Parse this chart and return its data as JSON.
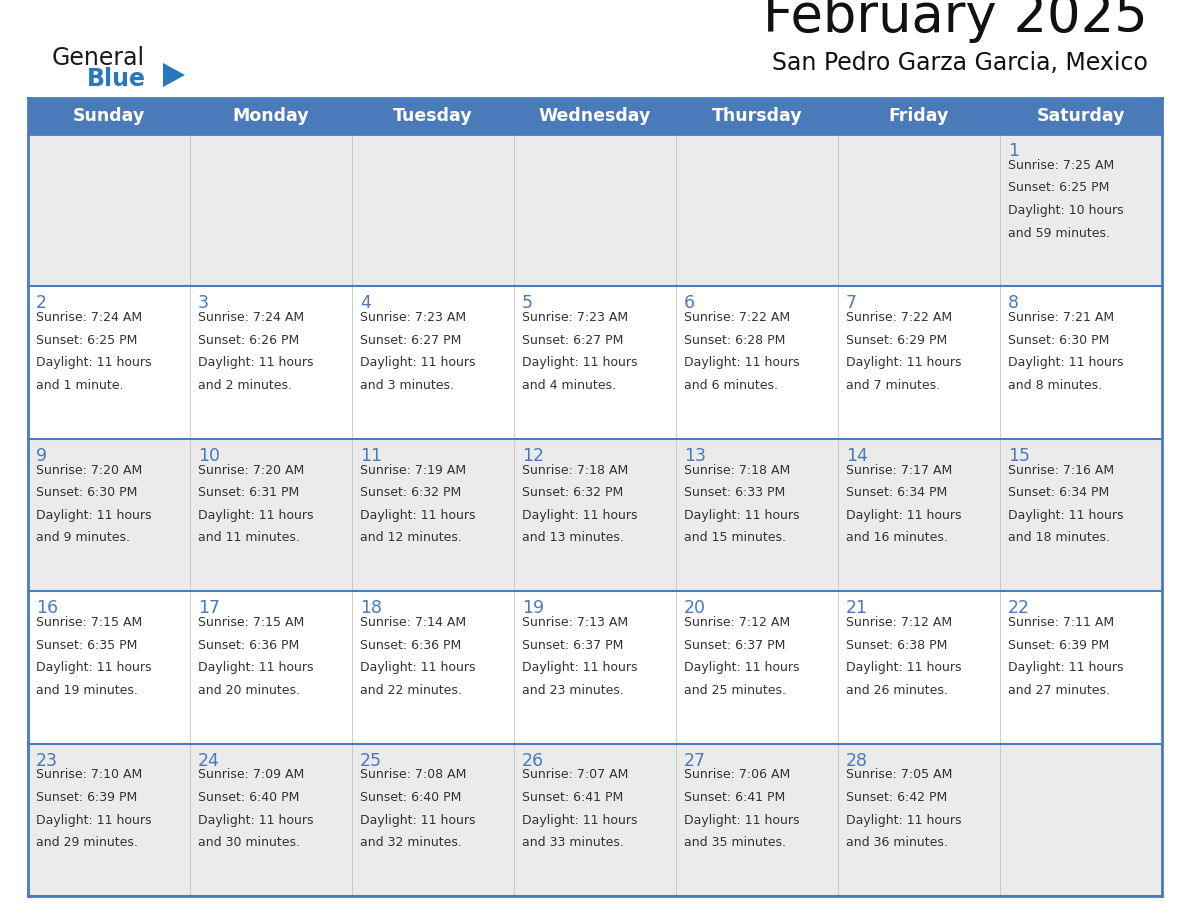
{
  "title": "February 2025",
  "subtitle": "San Pedro Garza Garcia, Mexico",
  "days_of_week": [
    "Sunday",
    "Monday",
    "Tuesday",
    "Wednesday",
    "Thursday",
    "Friday",
    "Saturday"
  ],
  "header_bg": "#4a7aba",
  "header_text": "#ffffff",
  "row_bg_light": "#ebebeb",
  "row_bg_white": "#ffffff",
  "cell_border_color": "#4a7aba",
  "cell_border_thin": "#c0c0c0",
  "day_number_color": "#4a7aba",
  "text_color": "#333333",
  "logo_general_color": "#1a1a1a",
  "logo_blue_color": "#2878be",
  "calendar_data": [
    {
      "day": 1,
      "row": 0,
      "col": 6,
      "sunrise": "7:25 AM",
      "sunset": "6:25 PM",
      "daylight_line1": "Daylight: 10 hours",
      "daylight_line2": "and 59 minutes."
    },
    {
      "day": 2,
      "row": 1,
      "col": 0,
      "sunrise": "7:24 AM",
      "sunset": "6:25 PM",
      "daylight_line1": "Daylight: 11 hours",
      "daylight_line2": "and 1 minute."
    },
    {
      "day": 3,
      "row": 1,
      "col": 1,
      "sunrise": "7:24 AM",
      "sunset": "6:26 PM",
      "daylight_line1": "Daylight: 11 hours",
      "daylight_line2": "and 2 minutes."
    },
    {
      "day": 4,
      "row": 1,
      "col": 2,
      "sunrise": "7:23 AM",
      "sunset": "6:27 PM",
      "daylight_line1": "Daylight: 11 hours",
      "daylight_line2": "and 3 minutes."
    },
    {
      "day": 5,
      "row": 1,
      "col": 3,
      "sunrise": "7:23 AM",
      "sunset": "6:27 PM",
      "daylight_line1": "Daylight: 11 hours",
      "daylight_line2": "and 4 minutes."
    },
    {
      "day": 6,
      "row": 1,
      "col": 4,
      "sunrise": "7:22 AM",
      "sunset": "6:28 PM",
      "daylight_line1": "Daylight: 11 hours",
      "daylight_line2": "and 6 minutes."
    },
    {
      "day": 7,
      "row": 1,
      "col": 5,
      "sunrise": "7:22 AM",
      "sunset": "6:29 PM",
      "daylight_line1": "Daylight: 11 hours",
      "daylight_line2": "and 7 minutes."
    },
    {
      "day": 8,
      "row": 1,
      "col": 6,
      "sunrise": "7:21 AM",
      "sunset": "6:30 PM",
      "daylight_line1": "Daylight: 11 hours",
      "daylight_line2": "and 8 minutes."
    },
    {
      "day": 9,
      "row": 2,
      "col": 0,
      "sunrise": "7:20 AM",
      "sunset": "6:30 PM",
      "daylight_line1": "Daylight: 11 hours",
      "daylight_line2": "and 9 minutes."
    },
    {
      "day": 10,
      "row": 2,
      "col": 1,
      "sunrise": "7:20 AM",
      "sunset": "6:31 PM",
      "daylight_line1": "Daylight: 11 hours",
      "daylight_line2": "and 11 minutes."
    },
    {
      "day": 11,
      "row": 2,
      "col": 2,
      "sunrise": "7:19 AM",
      "sunset": "6:32 PM",
      "daylight_line1": "Daylight: 11 hours",
      "daylight_line2": "and 12 minutes."
    },
    {
      "day": 12,
      "row": 2,
      "col": 3,
      "sunrise": "7:18 AM",
      "sunset": "6:32 PM",
      "daylight_line1": "Daylight: 11 hours",
      "daylight_line2": "and 13 minutes."
    },
    {
      "day": 13,
      "row": 2,
      "col": 4,
      "sunrise": "7:18 AM",
      "sunset": "6:33 PM",
      "daylight_line1": "Daylight: 11 hours",
      "daylight_line2": "and 15 minutes."
    },
    {
      "day": 14,
      "row": 2,
      "col": 5,
      "sunrise": "7:17 AM",
      "sunset": "6:34 PM",
      "daylight_line1": "Daylight: 11 hours",
      "daylight_line2": "and 16 minutes."
    },
    {
      "day": 15,
      "row": 2,
      "col": 6,
      "sunrise": "7:16 AM",
      "sunset": "6:34 PM",
      "daylight_line1": "Daylight: 11 hours",
      "daylight_line2": "and 18 minutes."
    },
    {
      "day": 16,
      "row": 3,
      "col": 0,
      "sunrise": "7:15 AM",
      "sunset": "6:35 PM",
      "daylight_line1": "Daylight: 11 hours",
      "daylight_line2": "and 19 minutes."
    },
    {
      "day": 17,
      "row": 3,
      "col": 1,
      "sunrise": "7:15 AM",
      "sunset": "6:36 PM",
      "daylight_line1": "Daylight: 11 hours",
      "daylight_line2": "and 20 minutes."
    },
    {
      "day": 18,
      "row": 3,
      "col": 2,
      "sunrise": "7:14 AM",
      "sunset": "6:36 PM",
      "daylight_line1": "Daylight: 11 hours",
      "daylight_line2": "and 22 minutes."
    },
    {
      "day": 19,
      "row": 3,
      "col": 3,
      "sunrise": "7:13 AM",
      "sunset": "6:37 PM",
      "daylight_line1": "Daylight: 11 hours",
      "daylight_line2": "and 23 minutes."
    },
    {
      "day": 20,
      "row": 3,
      "col": 4,
      "sunrise": "7:12 AM",
      "sunset": "6:37 PM",
      "daylight_line1": "Daylight: 11 hours",
      "daylight_line2": "and 25 minutes."
    },
    {
      "day": 21,
      "row": 3,
      "col": 5,
      "sunrise": "7:12 AM",
      "sunset": "6:38 PM",
      "daylight_line1": "Daylight: 11 hours",
      "daylight_line2": "and 26 minutes."
    },
    {
      "day": 22,
      "row": 3,
      "col": 6,
      "sunrise": "7:11 AM",
      "sunset": "6:39 PM",
      "daylight_line1": "Daylight: 11 hours",
      "daylight_line2": "and 27 minutes."
    },
    {
      "day": 23,
      "row": 4,
      "col": 0,
      "sunrise": "7:10 AM",
      "sunset": "6:39 PM",
      "daylight_line1": "Daylight: 11 hours",
      "daylight_line2": "and 29 minutes."
    },
    {
      "day": 24,
      "row": 4,
      "col": 1,
      "sunrise": "7:09 AM",
      "sunset": "6:40 PM",
      "daylight_line1": "Daylight: 11 hours",
      "daylight_line2": "and 30 minutes."
    },
    {
      "day": 25,
      "row": 4,
      "col": 2,
      "sunrise": "7:08 AM",
      "sunset": "6:40 PM",
      "daylight_line1": "Daylight: 11 hours",
      "daylight_line2": "and 32 minutes."
    },
    {
      "day": 26,
      "row": 4,
      "col": 3,
      "sunrise": "7:07 AM",
      "sunset": "6:41 PM",
      "daylight_line1": "Daylight: 11 hours",
      "daylight_line2": "and 33 minutes."
    },
    {
      "day": 27,
      "row": 4,
      "col": 4,
      "sunrise": "7:06 AM",
      "sunset": "6:41 PM",
      "daylight_line1": "Daylight: 11 hours",
      "daylight_line2": "and 35 minutes."
    },
    {
      "day": 28,
      "row": 4,
      "col": 5,
      "sunrise": "7:05 AM",
      "sunset": "6:42 PM",
      "daylight_line1": "Daylight: 11 hours",
      "daylight_line2": "and 36 minutes."
    }
  ]
}
